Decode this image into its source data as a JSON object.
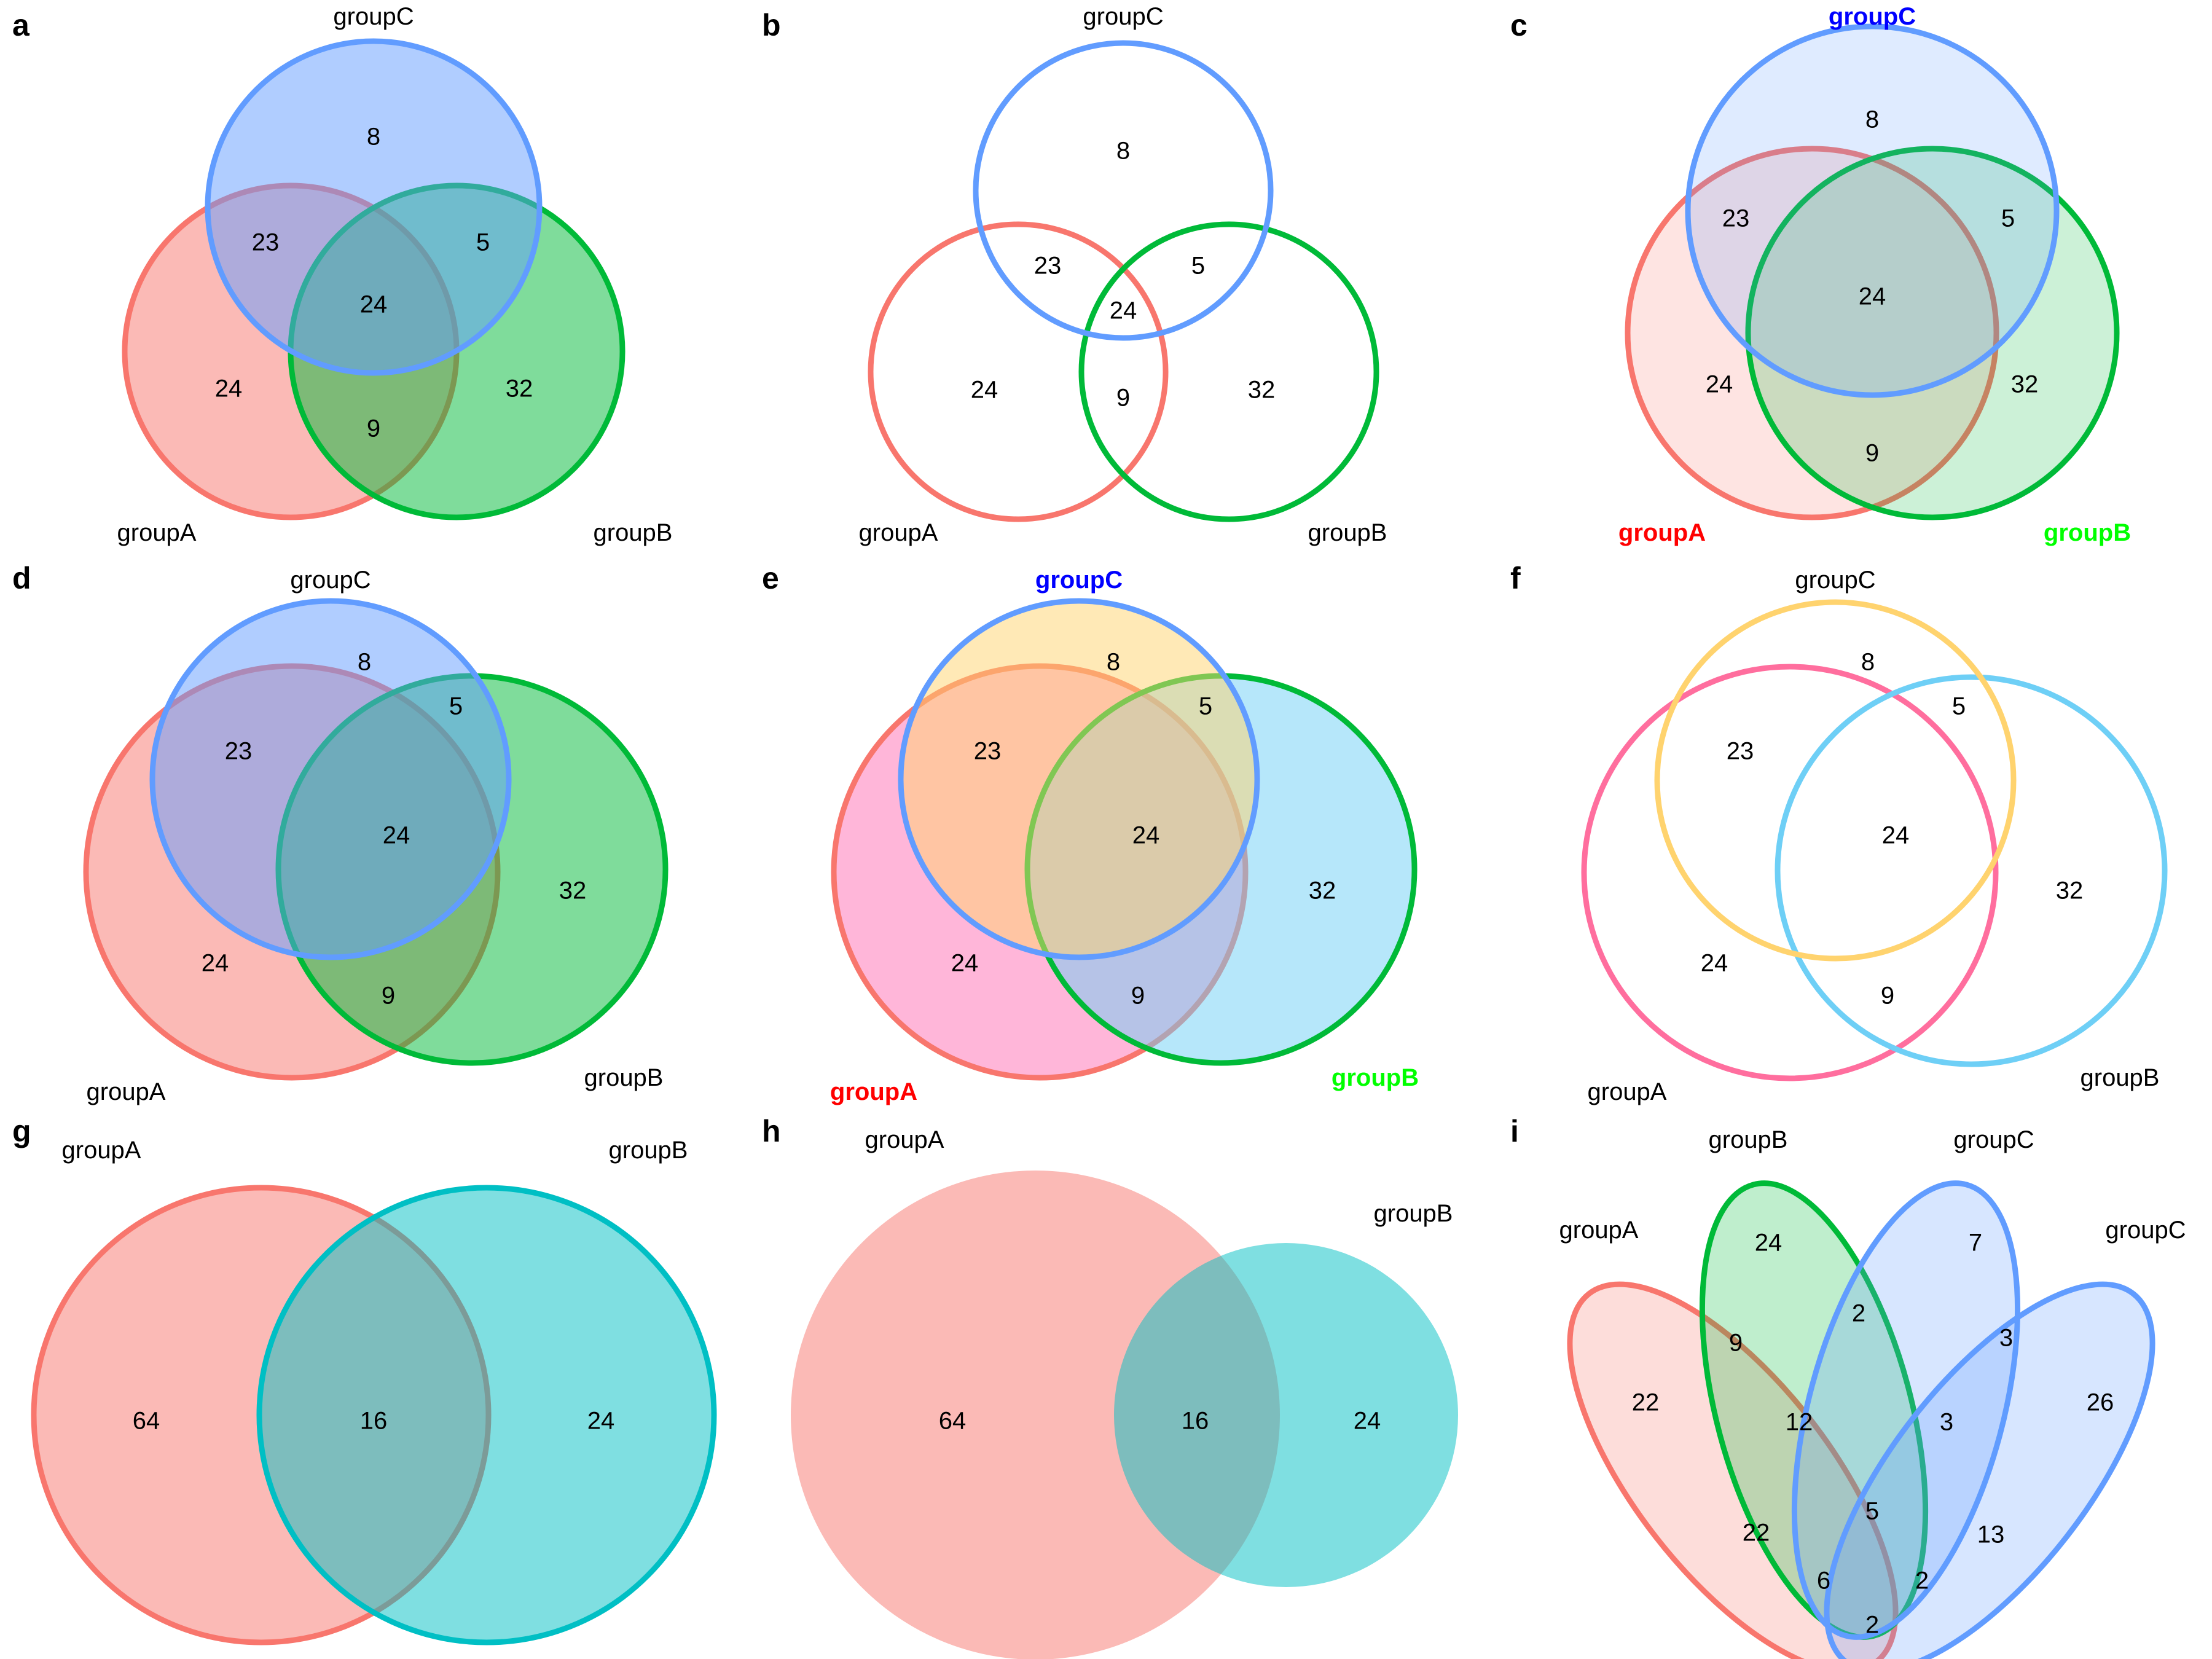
{
  "panels": [
    {
      "id": "a",
      "label": "a",
      "sets": [
        {
          "name": "groupA",
          "fill": "#F8766D",
          "stroke": "#F8766D",
          "fill_opacity": 0.5
        },
        {
          "name": "groupB",
          "fill": "#00BA38",
          "stroke": "#00BA38",
          "fill_opacity": 0.5
        },
        {
          "name": "groupC",
          "fill": "#619CFF",
          "stroke": "#619CFF",
          "fill_opacity": 0.5
        }
      ],
      "regions": [
        {
          "sets": [
            "groupA"
          ],
          "count": "24"
        },
        {
          "sets": [
            "groupB"
          ],
          "count": "32"
        },
        {
          "sets": [
            "groupC"
          ],
          "count": "8"
        },
        {
          "sets": [
            "groupA",
            "groupC"
          ],
          "count": "23"
        },
        {
          "sets": [
            "groupB",
            "groupC"
          ],
          "count": "5"
        },
        {
          "sets": [
            "groupA",
            "groupB"
          ],
          "count": "9"
        },
        {
          "sets": [
            "groupA",
            "groupB",
            "groupC"
          ],
          "count": "24"
        }
      ]
    },
    {
      "id": "b",
      "label": "b",
      "sets": [
        {
          "name": "groupA",
          "fill": "none",
          "stroke": "#F8766D",
          "fill_opacity": 0
        },
        {
          "name": "groupB",
          "fill": "none",
          "stroke": "#00BA38",
          "fill_opacity": 0
        },
        {
          "name": "groupC",
          "fill": "none",
          "stroke": "#619CFF",
          "fill_opacity": 0
        }
      ],
      "regions": [
        {
          "sets": [
            "groupA"
          ],
          "count": "24"
        },
        {
          "sets": [
            "groupB"
          ],
          "count": "32"
        },
        {
          "sets": [
            "groupC"
          ],
          "count": "8"
        },
        {
          "sets": [
            "groupA",
            "groupC"
          ],
          "count": "23"
        },
        {
          "sets": [
            "groupB",
            "groupC"
          ],
          "count": "5"
        },
        {
          "sets": [
            "groupA",
            "groupB"
          ],
          "count": "9"
        },
        {
          "sets": [
            "groupA",
            "groupB",
            "groupC"
          ],
          "count": "24"
        }
      ]
    },
    {
      "id": "c",
      "label": "c",
      "set_label_colors": {
        "groupA": "#FF0000",
        "groupB": "#00FF00",
        "groupC": "#0000FF"
      },
      "sets": [
        {
          "name": "groupA",
          "fill": "#F8766D",
          "stroke": "#F8766D",
          "fill_opacity": 0.2
        },
        {
          "name": "groupB",
          "fill": "#00BA38",
          "stroke": "#00BA38",
          "fill_opacity": 0.2
        },
        {
          "name": "groupC",
          "fill": "#619CFF",
          "stroke": "#619CFF",
          "fill_opacity": 0.2
        }
      ],
      "regions": [
        {
          "sets": [
            "groupA"
          ],
          "count": "24"
        },
        {
          "sets": [
            "groupB"
          ],
          "count": "32"
        },
        {
          "sets": [
            "groupC"
          ],
          "count": "8"
        },
        {
          "sets": [
            "groupA",
            "groupC"
          ],
          "count": "23"
        },
        {
          "sets": [
            "groupB",
            "groupC"
          ],
          "count": "5"
        },
        {
          "sets": [
            "groupA",
            "groupB"
          ],
          "count": "9"
        },
        {
          "sets": [
            "groupA",
            "groupB",
            "groupC"
          ],
          "count": "24"
        }
      ]
    },
    {
      "id": "d",
      "label": "d",
      "sets": [
        {
          "name": "groupA",
          "fill": "#F8766D",
          "stroke": "#F8766D",
          "fill_opacity": 0.5
        },
        {
          "name": "groupB",
          "fill": "#00BA38",
          "stroke": "#00BA38",
          "fill_opacity": 0.5
        },
        {
          "name": "groupC",
          "fill": "#619CFF",
          "stroke": "#619CFF",
          "fill_opacity": 0.5
        }
      ],
      "regions": [
        {
          "sets": [
            "groupA"
          ],
          "count": "24"
        },
        {
          "sets": [
            "groupB"
          ],
          "count": "32"
        },
        {
          "sets": [
            "groupC"
          ],
          "count": "8"
        },
        {
          "sets": [
            "groupA",
            "groupC"
          ],
          "count": "23"
        },
        {
          "sets": [
            "groupB",
            "groupC"
          ],
          "count": "5"
        },
        {
          "sets": [
            "groupA",
            "groupB"
          ],
          "count": "9"
        },
        {
          "sets": [
            "groupA",
            "groupB",
            "groupC"
          ],
          "count": "24"
        }
      ]
    },
    {
      "id": "e",
      "label": "e",
      "set_label_colors": {
        "groupA": "#FF0000",
        "groupB": "#00FF00",
        "groupC": "#0000FF"
      },
      "sets": [
        {
          "name": "groupA",
          "fill": "#FF6EB4",
          "stroke": "#F8766D",
          "fill_opacity": 0.5
        },
        {
          "name": "groupB",
          "fill": "#6ECFF6",
          "stroke": "#00BA38",
          "fill_opacity": 0.5
        },
        {
          "name": "groupC",
          "fill": "#FFD36E",
          "stroke": "#619CFF",
          "fill_opacity": 0.5
        }
      ],
      "regions": [
        {
          "sets": [
            "groupA"
          ],
          "count": "24"
        },
        {
          "sets": [
            "groupB"
          ],
          "count": "32"
        },
        {
          "sets": [
            "groupC"
          ],
          "count": "8"
        },
        {
          "sets": [
            "groupA",
            "groupC"
          ],
          "count": "23"
        },
        {
          "sets": [
            "groupB",
            "groupC"
          ],
          "count": "5"
        },
        {
          "sets": [
            "groupA",
            "groupB"
          ],
          "count": "9"
        },
        {
          "sets": [
            "groupA",
            "groupB",
            "groupC"
          ],
          "count": "24"
        }
      ]
    },
    {
      "id": "f",
      "label": "f",
      "sets": [
        {
          "name": "groupA",
          "fill": "none",
          "stroke": "#FF6E9E",
          "fill_opacity": 0
        },
        {
          "name": "groupB",
          "fill": "none",
          "stroke": "#6ECFF6",
          "fill_opacity": 0
        },
        {
          "name": "groupC",
          "fill": "none",
          "stroke": "#FFD36E",
          "fill_opacity": 0
        }
      ],
      "regions": [
        {
          "sets": [
            "groupA"
          ],
          "count": "24"
        },
        {
          "sets": [
            "groupB"
          ],
          "count": "32"
        },
        {
          "sets": [
            "groupC"
          ],
          "count": "8"
        },
        {
          "sets": [
            "groupA",
            "groupC"
          ],
          "count": "23"
        },
        {
          "sets": [
            "groupB",
            "groupC"
          ],
          "count": "5"
        },
        {
          "sets": [
            "groupA",
            "groupB"
          ],
          "count": "9"
        },
        {
          "sets": [
            "groupA",
            "groupB",
            "groupC"
          ],
          "count": "24"
        }
      ]
    },
    {
      "id": "g",
      "label": "g",
      "sets": [
        {
          "name": "groupA",
          "fill": "#F8766D",
          "stroke": "#F8766D",
          "fill_opacity": 0.5
        },
        {
          "name": "groupB",
          "fill": "#00BFC4",
          "stroke": "#00BFC4",
          "fill_opacity": 0.5
        }
      ],
      "regions": [
        {
          "sets": [
            "groupA"
          ],
          "count": "64"
        },
        {
          "sets": [
            "groupA",
            "groupB"
          ],
          "count": "16"
        },
        {
          "sets": [
            "groupB"
          ],
          "count": "24"
        }
      ]
    },
    {
      "id": "h",
      "label": "h",
      "sets": [
        {
          "name": "groupA",
          "fill": "#F8766D",
          "stroke": "none",
          "fill_opacity": 0.5
        },
        {
          "name": "groupB",
          "fill": "#00BFC4",
          "stroke": "none",
          "fill_opacity": 0.5
        }
      ],
      "regions": [
        {
          "sets": [
            "groupA"
          ],
          "count": "64"
        },
        {
          "sets": [
            "groupA",
            "groupB"
          ],
          "count": "16"
        },
        {
          "sets": [
            "groupB"
          ],
          "count": "24"
        }
      ]
    },
    {
      "id": "i",
      "label": "i",
      "sets": [
        {
          "name": "groupA",
          "fill": "#F8766D",
          "stroke": "#F8766D",
          "fill_opacity": 0.25
        },
        {
          "name": "groupB",
          "fill": "#00BA38",
          "stroke": "#00BA38",
          "fill_opacity": 0.25
        },
        {
          "name": "groupC",
          "fill": "#619CFF",
          "stroke": "#619CFF",
          "fill_opacity": 0.25
        },
        {
          "name": "groupC",
          "fill": "#619CFF",
          "stroke": "#619CFF",
          "fill_opacity": 0.25
        }
      ],
      "regions": [
        {
          "sets": [
            "groupA"
          ],
          "count": "22"
        },
        {
          "sets": [
            "groupB"
          ],
          "count": "24"
        },
        {
          "sets": [
            "set3"
          ],
          "count": "7"
        },
        {
          "sets": [
            "set4"
          ],
          "count": "26"
        },
        {
          "sets": [
            "groupA",
            "groupB"
          ],
          "count": "9"
        },
        {
          "sets": [
            "groupB",
            "set3"
          ],
          "count": "2"
        },
        {
          "sets": [
            "set3",
            "set4"
          ],
          "count": "3"
        },
        {
          "sets": [
            "groupA",
            "groupB",
            "set3"
          ],
          "count": "12"
        },
        {
          "sets": [
            "groupB",
            "set3",
            "set4"
          ],
          "count": "3"
        },
        {
          "sets": [
            "groupA",
            "set3"
          ],
          "count": "22"
        },
        {
          "sets": [
            "groupA",
            "groupB",
            "set3",
            "set4"
          ],
          "count": "5"
        },
        {
          "sets": [
            "groupB",
            "set4"
          ],
          "count": "13"
        },
        {
          "sets": [
            "groupA",
            "set3",
            "set4"
          ],
          "count": "6"
        },
        {
          "sets": [
            "groupA",
            "groupB",
            "set4"
          ],
          "count": "2"
        },
        {
          "sets": [
            "groupA",
            "set4"
          ],
          "count": "2"
        }
      ]
    }
  ]
}
